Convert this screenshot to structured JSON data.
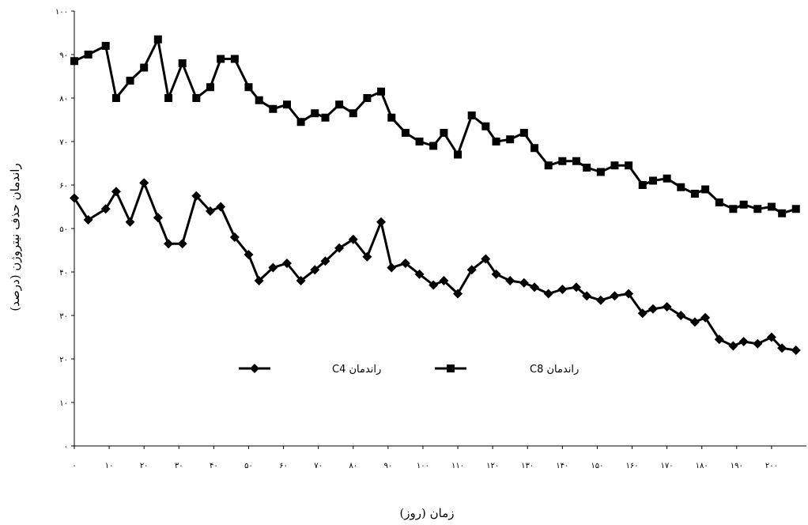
{
  "chart_data": {
    "type": "line",
    "xlabel": "زمان (روز)",
    "ylabel": "راندمان حذف نیتروژن (درصد)",
    "xlim": [
      0,
      210
    ],
    "ylim": [
      0,
      100
    ],
    "x_ticks": [
      0,
      10,
      20,
      30,
      40,
      50,
      60,
      70,
      80,
      90,
      100,
      110,
      120,
      130,
      140,
      150,
      160,
      170,
      180,
      190,
      200
    ],
    "x_tick_labels": [
      "۰",
      "۱۰",
      "۲۰",
      "۳۰",
      "۴۰",
      "۵۰",
      "۶۰",
      "۷۰",
      "۸۰",
      "۹۰",
      "۱۰۰",
      "۱۱۰",
      "۱۲۰",
      "۱۳۰",
      "۱۴۰",
      "۱۵۰",
      "۱۶۰",
      "۱۷۰",
      "۱۸۰",
      "۱۹۰",
      "۲۰۰"
    ],
    "y_ticks": [
      0,
      10,
      20,
      30,
      40,
      50,
      60,
      70,
      80,
      90,
      100
    ],
    "y_tick_labels": [
      "۰",
      "۱۰",
      "۲۰",
      "۳۰",
      "۴۰",
      "۵۰",
      "۶۰",
      "۷۰",
      "۸۰",
      "۹۰",
      "۱۰۰"
    ],
    "grid": false,
    "legend_position": "center-left",
    "series": [
      {
        "name": "راندمان C4",
        "marker": "diamond",
        "color": "#000000",
        "x": [
          0,
          4,
          9,
          12,
          16,
          20,
          24,
          27,
          31,
          35,
          39,
          42,
          46,
          50,
          53,
          57,
          61,
          65,
          69,
          72,
          76,
          80,
          84,
          88,
          91,
          95,
          99,
          103,
          106,
          110,
          114,
          118,
          121,
          125,
          129,
          132,
          136,
          140,
          144,
          147,
          151,
          155,
          159,
          163,
          166,
          170,
          174,
          178,
          181,
          185,
          189,
          192,
          196,
          200,
          203,
          207
        ],
        "y": [
          57,
          52,
          54.5,
          58.5,
          51.5,
          60.5,
          52.5,
          46.5,
          46.5,
          57.5,
          54,
          55,
          48,
          44,
          38,
          41,
          42,
          38,
          40.5,
          42.5,
          45.5,
          47.5,
          43.5,
          51.5,
          41,
          42,
          39.5,
          37,
          38,
          35,
          40.5,
          43,
          39.5,
          38,
          37.5,
          36.5,
          35,
          36,
          36.5,
          34.5,
          33.5,
          34.5,
          35,
          30.5,
          31.5,
          32,
          30,
          28.5,
          29.5,
          24.5,
          23,
          24,
          23.5,
          25,
          22.5,
          22
        ]
      },
      {
        "name": "راندمان C8",
        "marker": "square",
        "color": "#000000",
        "x": [
          0,
          4,
          9,
          12,
          16,
          20,
          24,
          27,
          31,
          35,
          39,
          42,
          46,
          50,
          53,
          57,
          61,
          65,
          69,
          72,
          76,
          80,
          84,
          88,
          91,
          95,
          99,
          103,
          106,
          110,
          114,
          118,
          121,
          125,
          129,
          132,
          136,
          140,
          144,
          147,
          151,
          155,
          159,
          163,
          166,
          170,
          174,
          178,
          181,
          185,
          189,
          192,
          196,
          200,
          203,
          207
        ],
        "y": [
          88.5,
          90,
          92,
          80,
          84,
          87,
          93.5,
          80,
          88,
          80,
          82.5,
          89,
          89,
          82.5,
          79.5,
          77.5,
          78.5,
          74.5,
          76.5,
          75.5,
          78.5,
          76.5,
          80,
          81.5,
          75.5,
          72,
          70,
          69,
          72,
          67,
          76,
          73.5,
          70,
          70.5,
          72,
          68.5,
          64.5,
          65.5,
          65.5,
          64,
          63,
          64.5,
          64.5,
          60,
          61,
          61.5,
          59.5,
          58,
          59,
          56,
          54.5,
          55.5,
          54.5,
          55,
          53.5,
          54.5
        ]
      }
    ]
  }
}
